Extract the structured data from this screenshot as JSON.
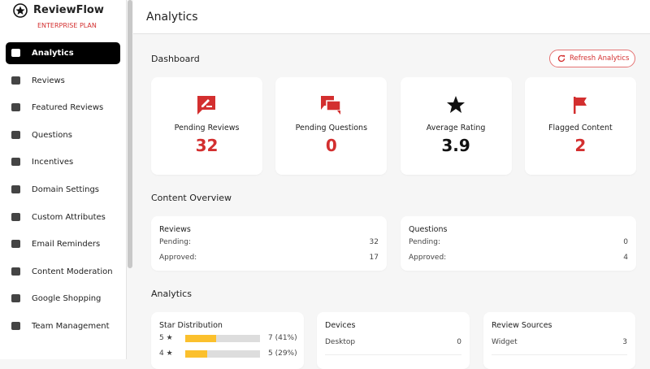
{
  "sidebar": {
    "brand": "ReviewFlow",
    "plan": "ENTERPRISE PLAN",
    "items": [
      "Analytics",
      "Reviews",
      "Featured Reviews",
      "Questions",
      "Incentives",
      "Domain Settings",
      "Custom Attributes",
      "Email Reminders",
      "Content Moderation",
      "Google Shopping",
      "Team Management"
    ]
  },
  "header": {
    "title": "Analytics"
  },
  "dashboard": {
    "title": "Dashboard",
    "refresh": "Refresh Analytics",
    "cards": [
      {
        "label": "Pending Reviews",
        "value": 32
      },
      {
        "label": "Pending Questions",
        "value": 0
      },
      {
        "label": "Average Rating",
        "value": 3.9
      },
      {
        "label": "Flagged Content",
        "value": 2
      }
    ]
  },
  "content_overview": {
    "title": "Content Overview",
    "panels": [
      {
        "title": "Reviews",
        "rows": [
          [
            "Pending:",
            32
          ],
          [
            "Approved:",
            17
          ]
        ]
      },
      {
        "title": "Questions",
        "rows": [
          [
            "Pending:",
            0
          ],
          [
            "Approved:",
            4
          ]
        ]
      }
    ]
  },
  "analytics": {
    "title": "Analytics",
    "star_distribution": {
      "title": "Star Distribution",
      "rows": [
        {
          "stars": "5 ★",
          "percent": 41,
          "label": "7 (41%)"
        },
        {
          "stars": "4 ★",
          "percent": 29,
          "label": "5 (29%)"
        }
      ]
    },
    "devices": {
      "title": "Devices",
      "rows": [
        [
          "Desktop",
          0
        ]
      ]
    },
    "review_sources": {
      "title": "Review Sources",
      "rows": [
        [
          "Widget",
          3
        ]
      ]
    }
  }
}
